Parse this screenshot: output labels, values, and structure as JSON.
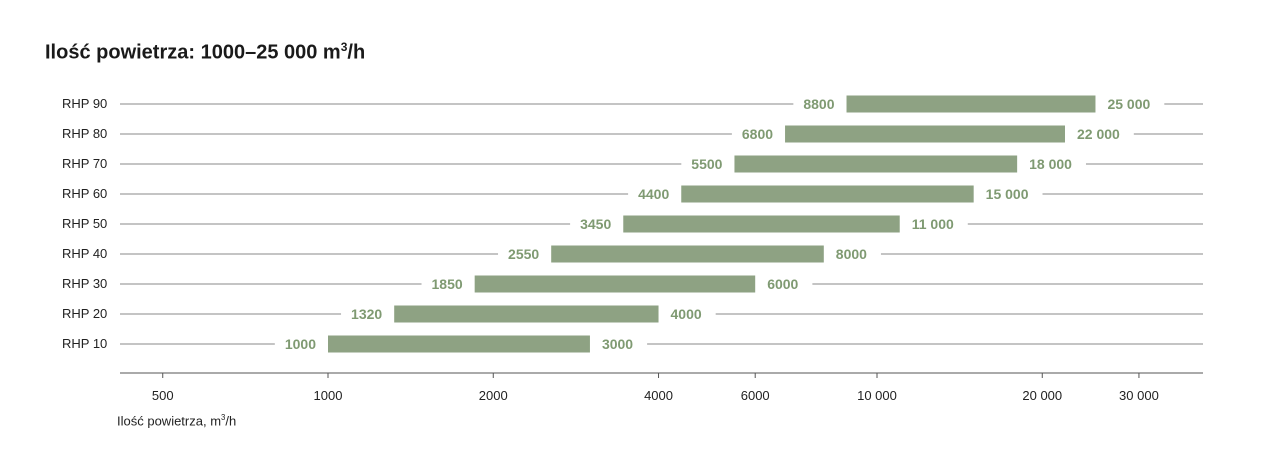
{
  "chart_data": {
    "type": "bar",
    "orientation": "horizontal",
    "subtype": "range",
    "title_main": "Ilość powietrza: 1000–25 000 m",
    "title_sup": "3",
    "title_after": "/h",
    "xlabel_main": "Ilość powietrza, m",
    "xlabel_sup": "3",
    "xlabel_after": "/h",
    "x_scale": "log",
    "xlim": [
      400,
      40000
    ],
    "x_ticks": [
      500,
      1000,
      2000,
      4000,
      6000,
      10000,
      20000,
      30000
    ],
    "x_tick_labels": [
      "500",
      "1000",
      "2000",
      "4000",
      "6000",
      "10 000",
      "20 000",
      "30 000"
    ],
    "categories": [
      "RHP 90",
      "RHP 80",
      "RHP 70",
      "RHP 60",
      "RHP 50",
      "RHP 40",
      "RHP 30",
      "RHP 20",
      "RHP 10"
    ],
    "ranges": [
      {
        "min": 8800,
        "max": 25000,
        "min_label": "8800",
        "max_label": "25 000"
      },
      {
        "min": 6800,
        "max": 22000,
        "min_label": "6800",
        "max_label": "22 000"
      },
      {
        "min": 5500,
        "max": 18000,
        "min_label": "5500",
        "max_label": "18 000"
      },
      {
        "min": 4400,
        "max": 15000,
        "min_label": "4400",
        "max_label": "15 000"
      },
      {
        "min": 3450,
        "max": 11000,
        "min_label": "3450",
        "max_label": "11 000"
      },
      {
        "min": 2550,
        "max": 8000,
        "min_label": "2550",
        "max_label": "8000"
      },
      {
        "min": 1850,
        "max": 6000,
        "min_label": "1850",
        "max_label": "6000"
      },
      {
        "min": 1320,
        "max": 4000,
        "min_label": "1320",
        "max_label": "4000"
      },
      {
        "min": 1000,
        "max": 3000,
        "min_label": "1000",
        "max_label": "3000"
      }
    ],
    "grid": false,
    "legend": "none"
  },
  "colors": {
    "bar": "#8ea283",
    "value_label": "#7f9a72",
    "guide_line": "#8a8a8a",
    "axis": "#555555"
  }
}
